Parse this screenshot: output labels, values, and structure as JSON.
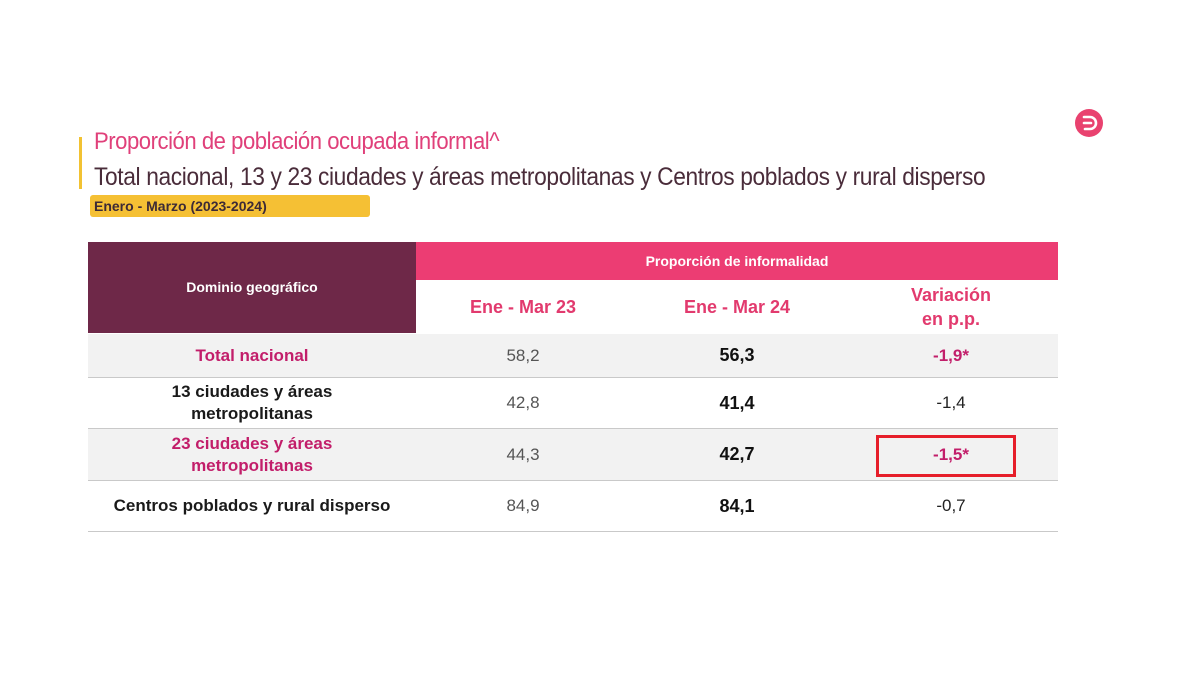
{
  "header": {
    "title": "Proporción de población ocupada informal^",
    "subtitle": "Total nacional, 13 y 23 ciudades y áreas metropolitanas y Centros poblados y rural disperso",
    "period": "Enero - Marzo (2023-2024)"
  },
  "colors": {
    "accent_pink": "#ec3d73",
    "header_purple": "#6e2848",
    "period_yellow": "#f5c034",
    "highlight_red": "#e61e2a"
  },
  "logo": {
    "icon": "dane-logo-icon"
  },
  "table": {
    "domain_header": "Dominio geográfico",
    "group_header": "Proporción de informalidad",
    "columns": [
      "Ene - Mar 23",
      "Ene - Mar 24",
      "Variación\nen p.p."
    ],
    "rows": [
      {
        "domain": "Total nacional",
        "v23": "58,2",
        "v24": "56,3",
        "variation": "-1,9*"
      },
      {
        "domain": "13 ciudades y áreas\nmetropolitanas",
        "v23": "42,8",
        "v24": "41,4",
        "variation": "-1,4"
      },
      {
        "domain": "23 ciudades y áreas\nmetropolitanas",
        "v23": "44,3",
        "v24": "42,7",
        "variation": "-1,5*"
      },
      {
        "domain": "Centros poblados y rural disperso",
        "v23": "84,9",
        "v24": "84,1",
        "variation": "-0,7"
      }
    ]
  }
}
